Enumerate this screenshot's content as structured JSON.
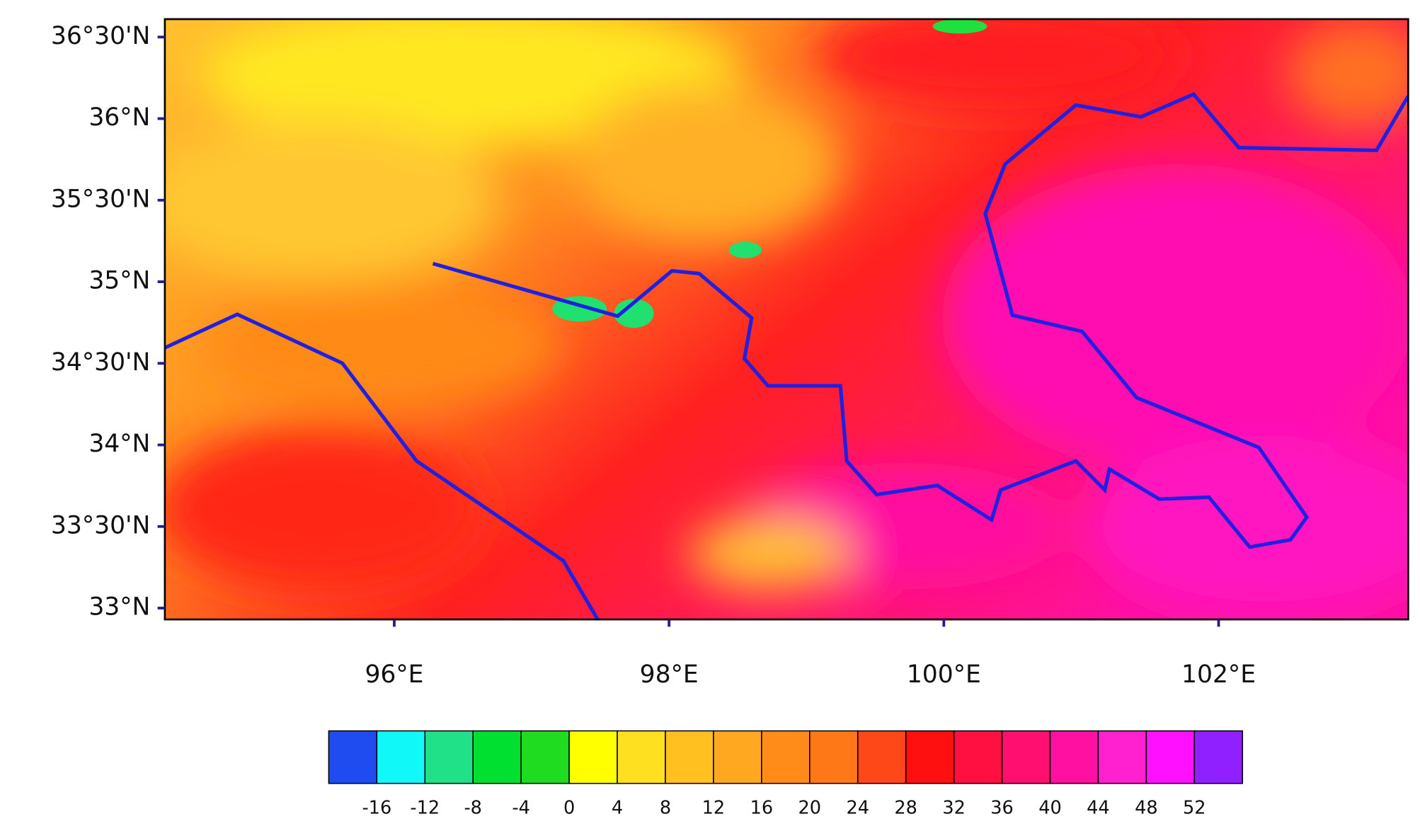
{
  "chart_data": {
    "type": "map",
    "xlim": [
      94.33,
      103.38
    ],
    "ylim": [
      32.93,
      36.61
    ],
    "xticks": [
      {
        "value": 96,
        "label": "96°E"
      },
      {
        "value": 98,
        "label": "98°E"
      },
      {
        "value": 100,
        "label": "100°E"
      },
      {
        "value": 102,
        "label": "102°E"
      }
    ],
    "yticks": [
      {
        "value": 33,
        "label": "33°N"
      },
      {
        "value": 33.5,
        "label": "33°30'N"
      },
      {
        "value": 34,
        "label": "34°N"
      },
      {
        "value": 34.5,
        "label": "34°30'N"
      },
      {
        "value": 35,
        "label": "35°N"
      },
      {
        "value": 35.5,
        "label": "35°30'N"
      },
      {
        "value": 36,
        "label": "36°N"
      },
      {
        "value": 36.5,
        "label": "36°30'N"
      }
    ],
    "colorbar": {
      "labels": [
        -16,
        -12,
        -8,
        -4,
        0,
        4,
        8,
        12,
        16,
        20,
        24,
        28,
        32,
        36,
        40,
        44,
        48,
        52
      ],
      "colors": [
        "#1e4cf0",
        "#10f8f8",
        "#20e088",
        "#00e030",
        "#20dc20",
        "#ffff00",
        "#ffe020",
        "#ffc020",
        "#ffa820",
        "#ff8c18",
        "#ff7818",
        "#ff4818",
        "#ff1010",
        "#ff1040",
        "#ff1070",
        "#ff10a0",
        "#ff20d0",
        "#ff10ff",
        "#9020ff"
      ]
    }
  }
}
